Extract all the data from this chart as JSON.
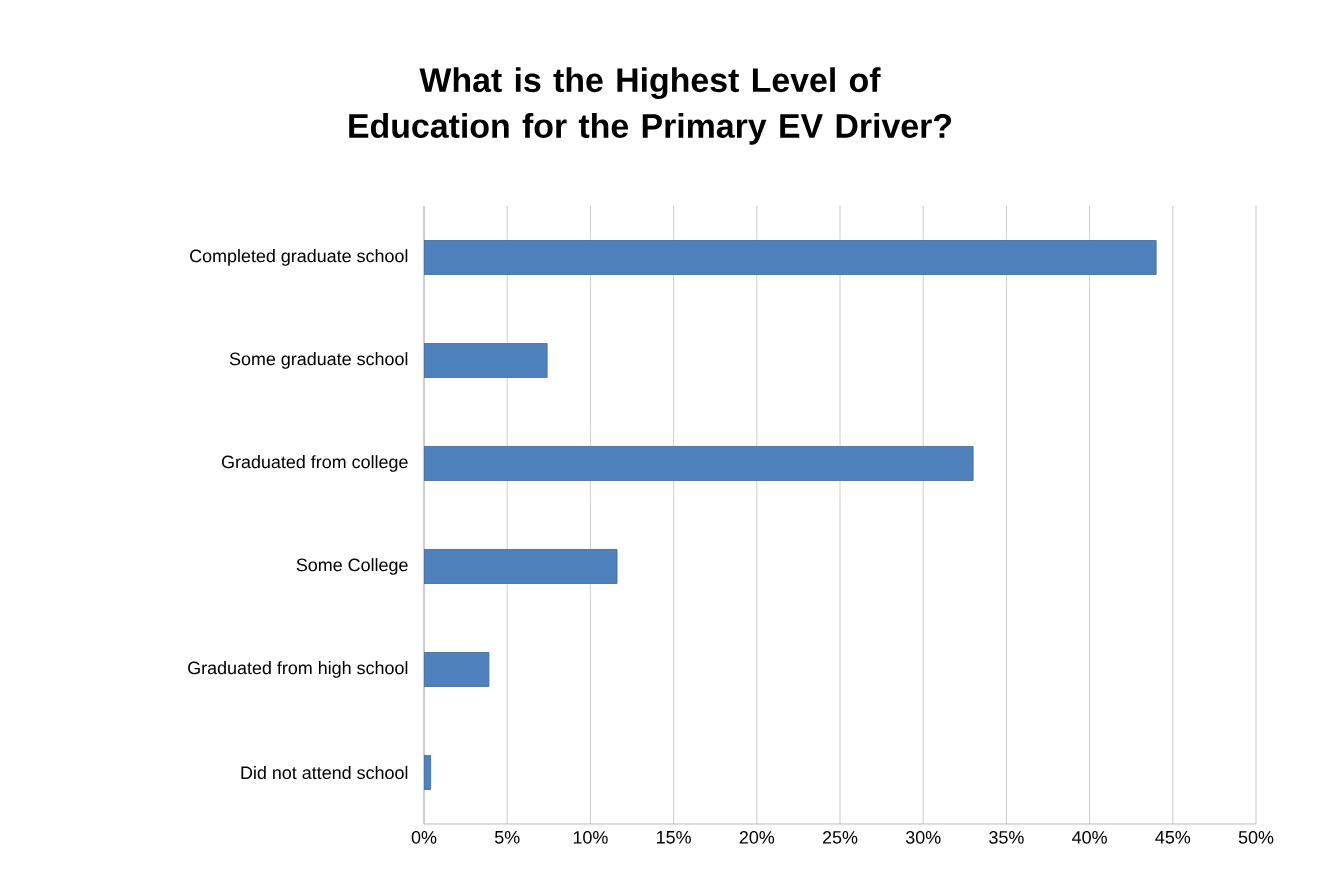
{
  "chart_data": {
    "type": "bar",
    "orientation": "horizontal",
    "title": "What is the Highest Level of Education for the Primary EV Driver?",
    "categories": [
      "Completed graduate school",
      "Some graduate school",
      "Graduated from college",
      "Some College",
      "Graduated from high school",
      "Did not attend school"
    ],
    "values": [
      44,
      7.4,
      33,
      11.6,
      3.9,
      0.4
    ],
    "color": "#4f81bd",
    "xlim": [
      0,
      50
    ],
    "xticks": [
      {
        "value": 0,
        "label": "0%"
      },
      {
        "value": 5,
        "label": "5%"
      },
      {
        "value": 10,
        "label": "10%"
      },
      {
        "value": 15,
        "label": "15%"
      },
      {
        "value": 20,
        "label": "20%"
      },
      {
        "value": 25,
        "label": "25%"
      },
      {
        "value": 30,
        "label": "30%"
      },
      {
        "value": 35,
        "label": "35%"
      },
      {
        "value": 40,
        "label": "40%"
      },
      {
        "value": 45,
        "label": "45%"
      },
      {
        "value": 50,
        "label": "50%"
      }
    ],
    "grid": "x"
  }
}
